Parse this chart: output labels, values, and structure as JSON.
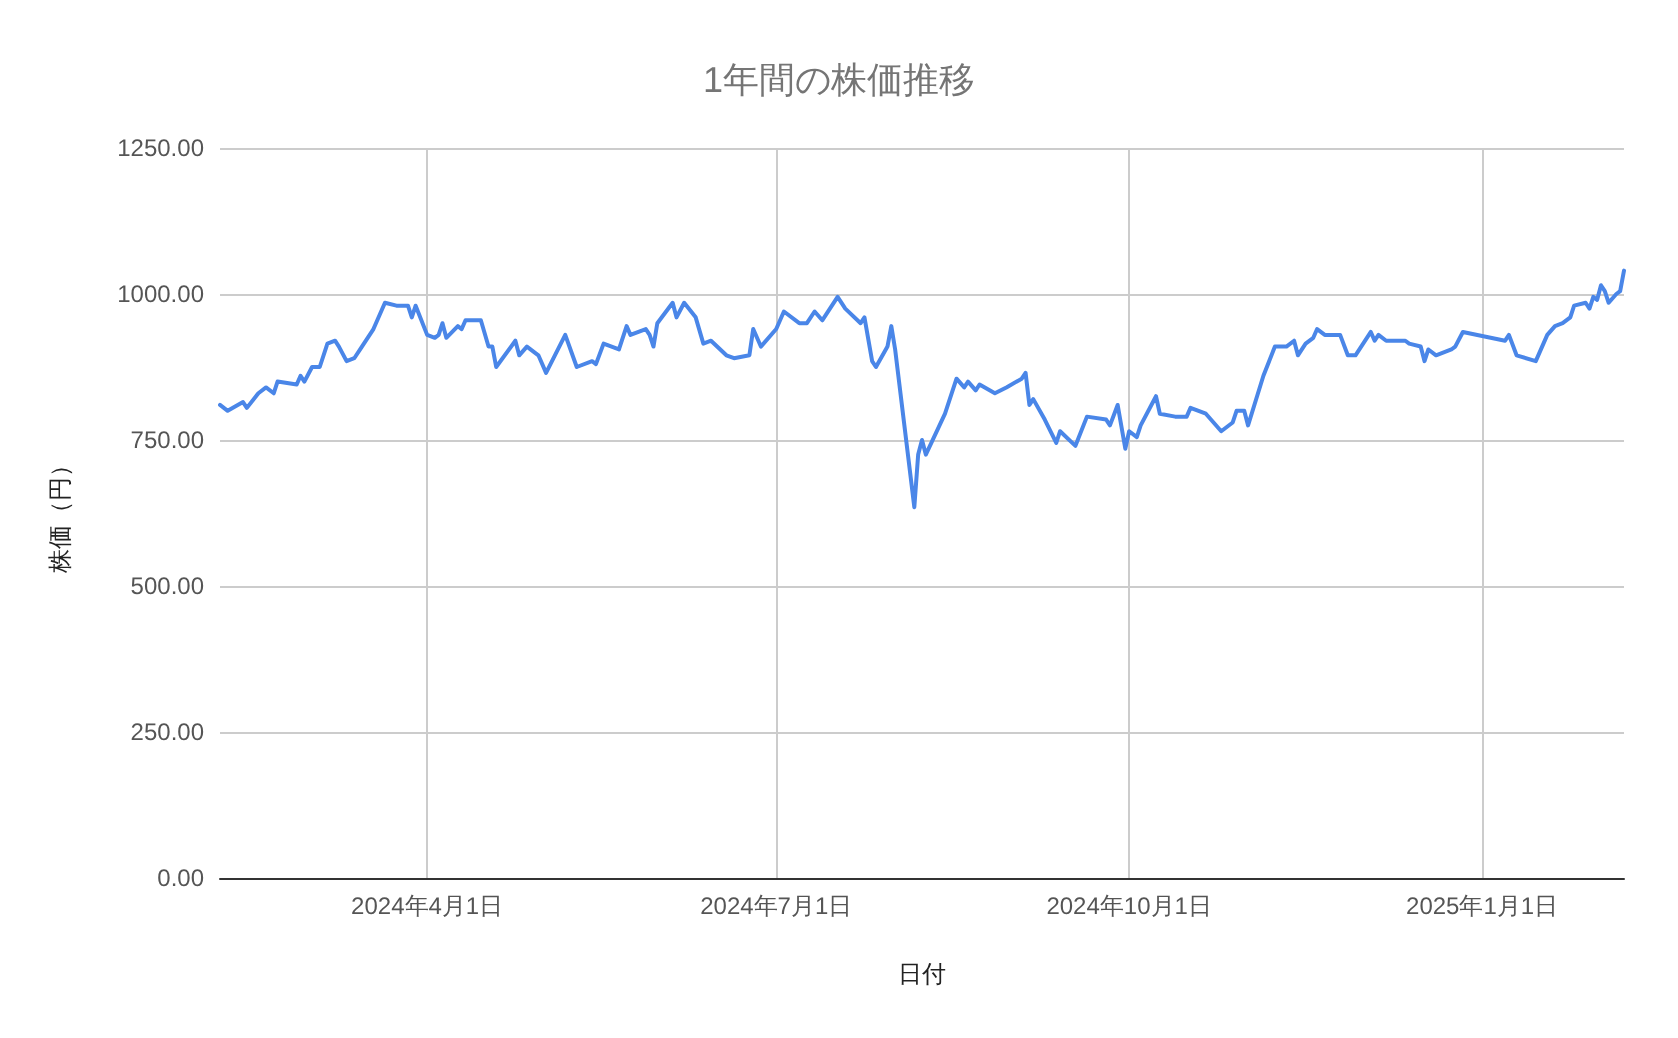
{
  "chart_data": {
    "type": "line",
    "title": "1年間の株価推移",
    "xlabel": "日付",
    "ylabel": "株価（円）",
    "x": [
      "2024-02-07",
      "2024-02-09",
      "2024-02-13",
      "2024-02-14",
      "2024-02-17",
      "2024-02-19",
      "2024-02-21",
      "2024-02-22",
      "2024-02-27",
      "2024-02-28",
      "2024-02-29",
      "2024-03-02",
      "2024-03-04",
      "2024-03-06",
      "2024-03-08",
      "2024-03-09",
      "2024-03-11",
      "2024-03-13",
      "2024-03-15",
      "2024-03-18",
      "2024-03-21",
      "2024-03-24",
      "2024-03-27",
      "2024-03-28",
      "2024-03-29",
      "2024-04-01",
      "2024-04-03",
      "2024-04-04",
      "2024-04-05",
      "2024-04-06",
      "2024-04-09",
      "2024-04-10",
      "2024-04-11",
      "2024-04-15",
      "2024-04-17",
      "2024-04-18",
      "2024-04-19",
      "2024-04-24",
      "2024-04-25",
      "2024-04-27",
      "2024-04-30",
      "2024-05-02",
      "2024-05-07",
      "2024-05-10",
      "2024-05-14",
      "2024-05-15",
      "2024-05-17",
      "2024-05-21",
      "2024-05-23",
      "2024-05-24",
      "2024-05-28",
      "2024-05-29",
      "2024-05-30",
      "2024-05-31",
      "2024-06-04",
      "2024-06-05",
      "2024-06-07",
      "2024-06-10",
      "2024-06-12",
      "2024-06-14",
      "2024-06-18",
      "2024-06-20",
      "2024-06-24",
      "2024-06-25",
      "2024-06-27",
      "2024-07-01",
      "2024-07-03",
      "2024-07-07",
      "2024-07-09",
      "2024-07-11",
      "2024-07-13",
      "2024-07-17",
      "2024-07-19",
      "2024-07-23",
      "2024-07-24",
      "2024-07-26",
      "2024-07-27",
      "2024-07-30",
      "2024-07-31",
      "2024-08-01",
      "2024-08-06",
      "2024-08-07",
      "2024-08-08",
      "2024-08-09",
      "2024-08-14",
      "2024-08-17",
      "2024-08-19",
      "2024-08-20",
      "2024-08-22",
      "2024-08-23",
      "2024-08-27",
      "2024-08-30",
      "2024-09-03",
      "2024-09-04",
      "2024-09-05",
      "2024-09-06",
      "2024-09-09",
      "2024-09-12",
      "2024-09-13",
      "2024-09-17",
      "2024-09-20",
      "2024-09-25",
      "2024-09-26",
      "2024-09-28",
      "2024-09-30",
      "2024-10-01",
      "2024-10-03",
      "2024-10-04",
      "2024-10-08",
      "2024-10-09",
      "2024-10-13",
      "2024-10-16",
      "2024-10-17",
      "2024-10-21",
      "2024-10-25",
      "2024-10-28",
      "2024-10-29",
      "2024-10-31",
      "2024-11-01",
      "2024-11-05",
      "2024-11-08",
      "2024-11-11",
      "2024-11-13",
      "2024-11-14",
      "2024-11-16",
      "2024-11-18",
      "2024-11-19",
      "2024-11-21",
      "2024-11-25",
      "2024-11-27",
      "2024-11-29",
      "2024-12-03",
      "2024-12-04",
      "2024-12-05",
      "2024-12-07",
      "2024-12-12",
      "2024-12-13",
      "2024-12-16",
      "2024-12-17",
      "2024-12-18",
      "2024-12-20",
      "2024-12-24",
      "2024-12-25",
      "2024-12-27",
      "2025-01-07",
      "2025-01-08",
      "2025-01-10",
      "2025-01-15",
      "2025-01-18",
      "2025-01-20",
      "2025-01-22",
      "2025-01-24",
      "2025-01-25",
      "2025-01-28",
      "2025-01-29",
      "2025-01-30",
      "2025-01-31",
      "2025-02-01",
      "2025-02-02",
      "2025-02-03",
      "2025-02-05",
      "2025-02-06",
      "2025-02-07"
    ],
    "series": [
      {
        "color": "#4a86e8",
        "values": [
          810,
          800,
          815,
          805,
          830,
          840,
          830,
          850,
          845,
          860,
          850,
          875,
          875,
          915,
          920,
          910,
          885,
          890,
          910,
          940,
          985,
          980,
          980,
          960,
          980,
          930,
          925,
          930,
          950,
          925,
          945,
          940,
          955,
          955,
          910,
          910,
          875,
          920,
          895,
          910,
          895,
          865,
          930,
          875,
          885,
          880,
          915,
          905,
          945,
          930,
          940,
          930,
          910,
          950,
          985,
          960,
          985,
          960,
          915,
          920,
          895,
          890,
          895,
          940,
          910,
          940,
          970,
          950,
          950,
          970,
          955,
          995,
          975,
          950,
          960,
          885,
          875,
          910,
          945,
          905,
          635,
          725,
          750,
          725,
          795,
          855,
          840,
          850,
          835,
          845,
          830,
          840,
          855,
          865,
          810,
          820,
          785,
          745,
          765,
          740,
          790,
          785,
          775,
          810,
          735,
          765,
          755,
          775,
          825,
          795,
          790,
          790,
          805,
          795,
          765,
          780,
          800,
          800,
          775,
          860,
          910,
          910,
          920,
          895,
          915,
          925,
          940,
          930,
          930,
          895,
          895,
          935,
          920,
          930,
          920,
          920,
          915,
          910,
          885,
          905,
          895,
          905,
          910,
          935,
          920,
          930,
          895,
          885,
          930,
          945,
          950,
          960,
          980,
          985,
          975,
          995,
          990,
          1015,
          1005,
          985,
          1000,
          1005,
          1040
        ]
      }
    ],
    "xlim": [
      "2024-02-07",
      "2025-02-07"
    ],
    "xticks": [
      {
        "value": "2024-04-01",
        "label": "2024年4月1日"
      },
      {
        "value": "2024-07-01",
        "label": "2024年7月1日"
      },
      {
        "value": "2024-10-01",
        "label": "2024年10月1日"
      },
      {
        "value": "2025-01-01",
        "label": "2025年1月1日"
      }
    ],
    "ylim": [
      0,
      1250
    ],
    "yticks": [
      {
        "value": 0,
        "label": "0.00"
      },
      {
        "value": 250,
        "label": "250.00"
      },
      {
        "value": 500,
        "label": "500.00"
      },
      {
        "value": 750,
        "label": "750.00"
      },
      {
        "value": 1000,
        "label": "1000.00"
      },
      {
        "value": 1250,
        "label": "1250.00"
      }
    ],
    "grid": true,
    "marker": "none",
    "line_style": "solid"
  }
}
